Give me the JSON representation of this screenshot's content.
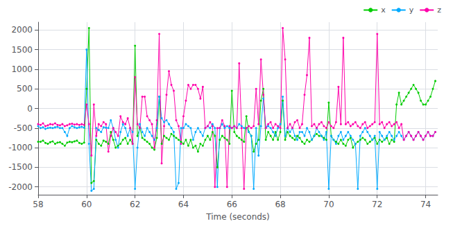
{
  "chart_data": {
    "type": "line",
    "xlabel": "Time (seconds)",
    "xlim": [
      58,
      74.5
    ],
    "ylim": [
      -2200,
      2200
    ],
    "xticks": [
      58,
      60,
      62,
      64,
      66,
      68,
      70,
      72,
      74
    ],
    "yticks": [
      -2000,
      -1500,
      -1000,
      -500,
      0,
      500,
      1000,
      1500,
      2000
    ],
    "grid": true,
    "legend": "upper right",
    "x": [
      58.0,
      58.1,
      58.2,
      58.3,
      58.4,
      58.5,
      58.6,
      58.7,
      58.8,
      58.9,
      59.0,
      59.1,
      59.2,
      59.3,
      59.4,
      59.5,
      59.6,
      59.7,
      59.8,
      59.9,
      60.0,
      60.1,
      60.2,
      60.3,
      60.4,
      60.5,
      60.6,
      60.7,
      60.8,
      60.9,
      61.0,
      61.1,
      61.2,
      61.3,
      61.4,
      61.5,
      61.6,
      61.7,
      61.8,
      61.9,
      62.0,
      62.1,
      62.2,
      62.3,
      62.4,
      62.5,
      62.6,
      62.7,
      62.8,
      62.9,
      63.0,
      63.1,
      63.2,
      63.3,
      63.4,
      63.5,
      63.6,
      63.7,
      63.8,
      63.9,
      64.0,
      64.1,
      64.2,
      64.3,
      64.4,
      64.5,
      64.6,
      64.7,
      64.8,
      64.9,
      65.0,
      65.1,
      65.2,
      65.3,
      65.4,
      65.5,
      65.6,
      65.7,
      65.8,
      65.9,
      66.0,
      66.1,
      66.2,
      66.3,
      66.4,
      66.5,
      66.6,
      66.7,
      66.8,
      66.9,
      67.0,
      67.1,
      67.2,
      67.3,
      67.4,
      67.5,
      67.6,
      67.7,
      67.8,
      67.9,
      68.0,
      68.1,
      68.2,
      68.3,
      68.4,
      68.5,
      68.6,
      68.7,
      68.8,
      68.9,
      69.0,
      69.1,
      69.2,
      69.3,
      69.4,
      69.5,
      69.6,
      69.7,
      69.8,
      69.9,
      70.0,
      70.1,
      70.2,
      70.3,
      70.4,
      70.5,
      70.6,
      70.7,
      70.8,
      70.9,
      71.0,
      71.1,
      71.2,
      71.3,
      71.4,
      71.5,
      71.6,
      71.7,
      71.8,
      71.9,
      72.0,
      72.1,
      72.2,
      72.3,
      72.4,
      72.5,
      72.6,
      72.7,
      72.8,
      72.9,
      73.0,
      73.1,
      73.2,
      73.3,
      73.4,
      73.5,
      73.6,
      73.7,
      73.8,
      73.9,
      74.0,
      74.1,
      74.2,
      74.3,
      74.4
    ],
    "series": [
      {
        "name": "x",
        "color": "#00cc00",
        "marker": "circle",
        "line_style": "solid",
        "values": [
          -850,
          -850,
          -820,
          -880,
          -900,
          -860,
          -840,
          -900,
          -870,
          -860,
          -900,
          -950,
          -870,
          -850,
          -860,
          -840,
          -820,
          -880,
          -900,
          -870,
          500,
          2050,
          -1900,
          -1850,
          -800,
          -900,
          -950,
          -820,
          -850,
          -900,
          -600,
          -800,
          -1000,
          -950,
          -900,
          -800,
          -750,
          -900,
          -800,
          -900,
          1600,
          -700,
          -500,
          -750,
          -800,
          -850,
          -900,
          -1000,
          -1050,
          -750,
          300,
          -900,
          -700,
          -750,
          -800,
          -650,
          -700,
          -750,
          -800,
          -850,
          -900,
          -800,
          -950,
          -800,
          -1000,
          -950,
          -1100,
          -900,
          -950,
          -800,
          -700,
          -800,
          -600,
          -700,
          -1500,
          -800,
          -700,
          -750,
          -800,
          -900,
          450,
          -600,
          -700,
          -750,
          -800,
          -850,
          -200,
          -600,
          -700,
          -1100,
          -900,
          -800,
          200,
          500,
          -800,
          -600,
          -700,
          -800,
          -600,
          -800,
          -600,
          200,
          -800,
          -600,
          -700,
          -750,
          -800,
          -700,
          -750,
          -850,
          -900,
          -800,
          -850,
          -800,
          -700,
          -650,
          -700,
          -700,
          -750,
          -800,
          150,
          -700,
          -800,
          -850,
          -900,
          -800,
          -900,
          -950,
          -800,
          -750,
          -1000,
          -900,
          -850,
          -800,
          -750,
          -800,
          -900,
          -850,
          -800,
          -750,
          -900,
          -800,
          -850,
          -800,
          -750,
          -900,
          -800,
          -850,
          100,
          400,
          100,
          200,
          300,
          400,
          500,
          600,
          500,
          400,
          200,
          100,
          100,
          200,
          300,
          500,
          700
        ]
      },
      {
        "name": "y",
        "color": "#00aaff",
        "marker": "circle",
        "line_style": "solid",
        "values": [
          -450,
          -500,
          -480,
          -520,
          -500,
          -490,
          -500,
          -480,
          -470,
          -500,
          -500,
          -600,
          -700,
          -500,
          -450,
          -480,
          -500,
          -480,
          -470,
          -490,
          1500,
          -900,
          -2100,
          -2050,
          -500,
          -550,
          -600,
          -480,
          -490,
          -500,
          -300,
          -500,
          -800,
          -1000,
          -600,
          -400,
          -500,
          -700,
          -500,
          -600,
          -2050,
          -1000,
          -400,
          -600,
          -700,
          -500,
          -600,
          -700,
          -800,
          -500,
          300,
          -250,
          -350,
          -300,
          -400,
          -500,
          -600,
          -2050,
          -1900,
          -500,
          -500,
          -400,
          -450,
          -500,
          -800,
          -600,
          -500,
          -600,
          -700,
          -500,
          -450,
          -500,
          -400,
          -500,
          -2000,
          -500,
          -400,
          -500,
          -450,
          -500,
          -500,
          -450,
          -500,
          -400,
          -450,
          -500,
          -500,
          -600,
          -700,
          -2050,
          -500,
          -1200,
          -450,
          250,
          -500,
          -450,
          -500,
          -600,
          -700,
          -500,
          -400,
          300,
          -700,
          -500,
          -600,
          -500,
          -700,
          -800,
          -600,
          -600,
          -700,
          -500,
          -600,
          -800,
          -700,
          -500,
          -600,
          -700,
          -800,
          -600,
          -2050,
          -700,
          -800,
          -900,
          -700,
          -600,
          -800,
          -700,
          -600,
          -700,
          -800,
          -900,
          -2050,
          -700,
          -600,
          -500,
          -600,
          -700,
          -800,
          -700,
          -2050,
          -600,
          -700,
          -800,
          -700,
          -600,
          -700,
          -800,
          -700,
          -600,
          -700,
          -800,
          -700,
          -600,
          -700,
          -800,
          -700,
          -600,
          -700,
          -800,
          -700,
          -600,
          -700,
          -700,
          -600
        ]
      },
      {
        "name": "z",
        "color": "#ff00aa",
        "marker": "circle",
        "line_style": "solid",
        "values": [
          -400,
          -420,
          -380,
          -450,
          -430,
          -400,
          -410,
          -380,
          -420,
          -430,
          -400,
          -450,
          -430,
          -400,
          -390,
          -410,
          -400,
          -420,
          -400,
          -420,
          100,
          -400,
          -1200,
          100,
          -700,
          -400,
          -450,
          -350,
          -400,
          -1100,
          -700,
          -500,
          -600,
          -700,
          -200,
          -350,
          -400,
          -250,
          -500,
          -900,
          800,
          -400,
          -500,
          300,
          300,
          -200,
          -300,
          -400,
          -1000,
          -300,
          1900,
          -1400,
          -450,
          350,
          950,
          600,
          450,
          -300,
          -450,
          -900,
          -200,
          200,
          600,
          500,
          600,
          600,
          500,
          250,
          550,
          -500,
          -450,
          -350,
          -450,
          -2000,
          -500,
          -500,
          -300,
          -450,
          -2000,
          -450,
          -500,
          -450,
          -500,
          1150,
          -500,
          -2050,
          -500,
          -450,
          -500,
          -450,
          500,
          -400,
          1250,
          350,
          -500,
          -400,
          -350,
          -500,
          -400,
          -450,
          -500,
          2050,
          1250,
          -500,
          -400,
          -500,
          -350,
          -300,
          -500,
          -400,
          350,
          850,
          1800,
          -450,
          -400,
          -500,
          -400,
          -350,
          -450,
          -500,
          -350,
          -450,
          -500,
          -350,
          550,
          -400,
          1800,
          -400,
          -350,
          -450,
          -400,
          -350,
          -450,
          -500,
          -400,
          -350,
          -500,
          -450,
          -400,
          -350,
          1900,
          -400,
          -350,
          -500,
          -400,
          -350,
          -450,
          -400,
          -350,
          -500,
          -400,
          -800,
          -700,
          -600,
          -700,
          -800,
          -700,
          -600,
          -700,
          -800,
          -700,
          -600,
          -700,
          -700,
          -600
        ]
      }
    ]
  }
}
